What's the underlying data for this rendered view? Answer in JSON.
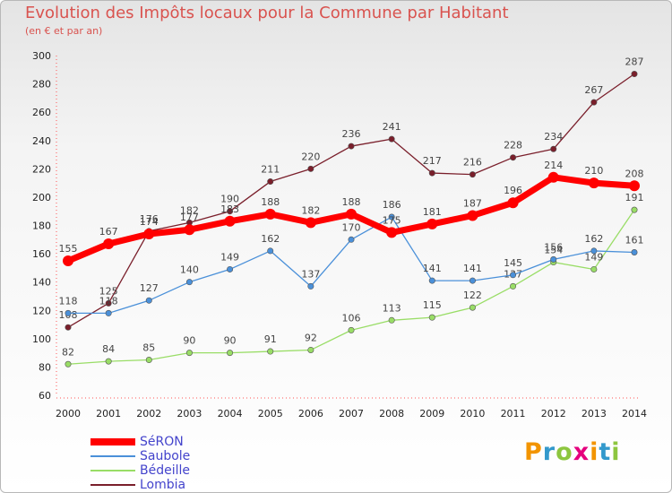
{
  "header": {
    "title": "Evolution des Impôts locaux pour la Commune par Habitant",
    "subtitle": "(en € et par an)"
  },
  "brand": {
    "text": "Proxiti",
    "colors": [
      "#f29400",
      "#3399cc",
      "#8dc63f",
      "#e5007d",
      "#f29400",
      "#3399cc",
      "#8dc63f"
    ]
  },
  "chart_data": {
    "type": "line",
    "x": [
      "2000",
      "2001",
      "2002",
      "2003",
      "2004",
      "2005",
      "2006",
      "2007",
      "2008",
      "2009",
      "2010",
      "2011",
      "2012",
      "2013",
      "2014"
    ],
    "ylim": [
      60,
      300
    ],
    "yticks": [
      60,
      80,
      100,
      120,
      140,
      160,
      180,
      200,
      220,
      240,
      260,
      280,
      300
    ],
    "grid": false,
    "legend_position": "bottom-left",
    "series": [
      {
        "name": "SéRON",
        "color": "#ff0000",
        "values": [
          155,
          167,
          174,
          177,
          183,
          188,
          182,
          188,
          175,
          181,
          187,
          196,
          214,
          210,
          208
        ]
      },
      {
        "name": "Saubole",
        "color": "#4a90d9",
        "values": [
          118,
          118,
          127,
          140,
          149,
          162,
          137,
          170,
          186,
          141,
          141,
          145,
          156,
          162,
          161
        ]
      },
      {
        "name": "Bédeille",
        "color": "#99dd66",
        "values": [
          82,
          84,
          85,
          90,
          90,
          91,
          92,
          106,
          113,
          115,
          122,
          137,
          154,
          149,
          191
        ]
      },
      {
        "name": "Lombia",
        "color": "#7a1f2b",
        "values": [
          108,
          125,
          176,
          182,
          190,
          211,
          220,
          236,
          241,
          217,
          216,
          228,
          234,
          267,
          287
        ]
      }
    ]
  }
}
